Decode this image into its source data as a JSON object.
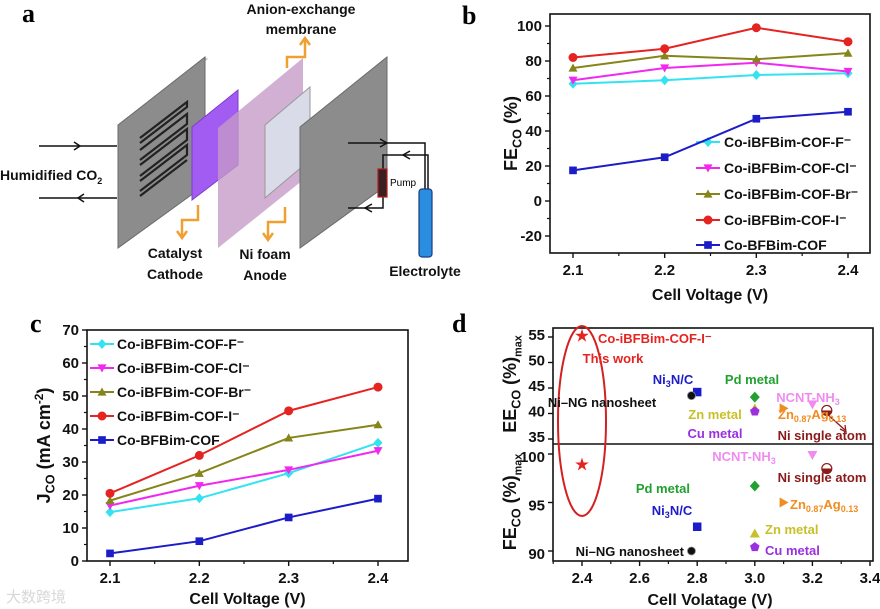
{
  "panel_letters": [
    "a",
    "b",
    "c",
    "d"
  ],
  "watermark": "大数跨境",
  "diagram": {
    "labels": {
      "membrane_1": "Anion-exchange",
      "membrane_2": "membrane",
      "humidified": "Humidified CO",
      "humidified_sub": "2",
      "catalyst_1": "Catalyst",
      "catalyst_2": "Cathode",
      "anode_1": "Ni foam",
      "anode_2": "Anode",
      "pump": "Pump",
      "electrolyte": "Electrolyte"
    }
  },
  "chart_data": [
    {
      "type": "line",
      "panel": "b",
      "xlabel": "Cell Voltage (V)",
      "ylabel": {
        "main": "FE",
        "sub": "CO",
        "rest": " (%)"
      },
      "x": [
        2.1,
        2.2,
        2.3,
        2.4
      ],
      "xticks": [
        "2.1",
        "2.2",
        "2.3",
        "2.4"
      ],
      "ylim": [
        -30,
        105
      ],
      "yticks": [
        "-20",
        "0",
        "20",
        "40",
        "60",
        "80",
        "100"
      ],
      "ytick_values": [
        -20,
        0,
        20,
        40,
        60,
        80,
        100
      ],
      "legend_placement": "bottom-right",
      "series": [
        {
          "name": "Co-iBFBim-COF-F⁻",
          "values": [
            67,
            69,
            72,
            73
          ],
          "color": "#33e3f0",
          "marker": "diamond"
        },
        {
          "name": "Co-iBFBim-COF-Cl⁻",
          "values": [
            69,
            76,
            79,
            74
          ],
          "color": "#f028f0",
          "marker": "triangle-down"
        },
        {
          "name": "Co-iBFBim-COF-Br⁻",
          "values": [
            76,
            83,
            81,
            84.5
          ],
          "color": "#85851a",
          "marker": "triangle-up"
        },
        {
          "name": "Co-iBFBim-COF-I⁻",
          "values": [
            82,
            87,
            99,
            91
          ],
          "color": "#e52320",
          "marker": "circle"
        },
        {
          "name": "Co-BFBim-COF",
          "values": [
            17.5,
            25,
            47,
            51
          ],
          "color": "#1c1cc8",
          "marker": "square"
        }
      ]
    },
    {
      "type": "line",
      "panel": "c",
      "xlabel": "Cell Voltage (V)",
      "ylabel": {
        "main": "J",
        "sub": "CO",
        "rest": " (mA cm",
        "sup": "-2",
        "end": ")"
      },
      "x": [
        2.1,
        2.2,
        2.3,
        2.4
      ],
      "xticks": [
        "2.1",
        "2.2",
        "2.3",
        "2.4"
      ],
      "ylim": [
        0,
        70
      ],
      "yticks": [
        "0",
        "10",
        "20",
        "30",
        "40",
        "50",
        "60",
        "70"
      ],
      "ytick_values": [
        0,
        10,
        20,
        30,
        40,
        50,
        60,
        70
      ],
      "legend_placement": "top-left",
      "series": [
        {
          "name": "Co-iBFBim-COF-F⁻",
          "values": [
            14.8,
            19,
            26.6,
            35.8
          ],
          "color": "#33e3f0",
          "marker": "diamond"
        },
        {
          "name": "Co-iBFBim-COF-Cl⁻",
          "values": [
            16.8,
            22.8,
            27.6,
            33.4
          ],
          "color": "#f028f0",
          "marker": "triangle-down"
        },
        {
          "name": "Co-iBFBim-COF-Br⁻",
          "values": [
            18.3,
            26.6,
            37.3,
            41.3
          ],
          "color": "#85851a",
          "marker": "triangle-up"
        },
        {
          "name": "Co-iBFBim-COF-I⁻",
          "values": [
            20.5,
            32,
            45.5,
            52.7
          ],
          "color": "#e52320",
          "marker": "circle"
        },
        {
          "name": "Co-BFBim-COF",
          "values": [
            2.3,
            6,
            13.2,
            18.9
          ],
          "color": "#1c1cc8",
          "marker": "square"
        }
      ]
    },
    {
      "type": "scatter",
      "panel": "d",
      "xlabel": "Cell Volatage (V)",
      "xlim": [
        2.3,
        3.4
      ],
      "xticks": [
        "2.4",
        "2.6",
        "2.8",
        "3.0",
        "3.2",
        "3.4"
      ],
      "xtick_values": [
        2.4,
        2.6,
        2.8,
        3.0,
        3.2,
        3.4
      ],
      "top": {
        "ylabel": {
          "main": "EE",
          "sub": "CO",
          "rest": " (%)",
          "sub2": "max"
        },
        "ylim": [
          33.5,
          57
        ],
        "yticks": [
          "35",
          "40",
          "45",
          "50",
          "55"
        ],
        "ytick_values": [
          35,
          40,
          45,
          50,
          55
        ],
        "points": [
          {
            "x": 2.4,
            "y": 55.2,
            "marker": "star",
            "color": "#e52320"
          },
          {
            "x": 2.8,
            "y": 44.2,
            "marker": "square",
            "color": "#1c1cc8"
          },
          {
            "x": 2.78,
            "y": 43.5,
            "marker": "sphere",
            "color": "#111111"
          },
          {
            "x": 3.0,
            "y": 43.2,
            "marker": "diamond",
            "color": "#22a030"
          },
          {
            "x": 3.0,
            "y": 41.0,
            "marker": "triangle-up",
            "color": "#c8c028"
          },
          {
            "x": 3.0,
            "y": 40.4,
            "marker": "pentagon",
            "color": "#9a30e0"
          },
          {
            "x": 3.1,
            "y": 41.0,
            "marker": "triangle-right",
            "color": "#f08c20"
          },
          {
            "x": 3.2,
            "y": 41.8,
            "marker": "triangle-down",
            "color": "#f08cf0"
          },
          {
            "x": 3.25,
            "y": 40.6,
            "marker": "half-circle",
            "color": "#8b1a1a"
          }
        ],
        "labels": [
          {
            "t": [
              [
                "Co-iBFBim-COF-I⁻",
                ""
              ]
            ],
            "color": "#e52320"
          },
          {
            "t": [
              [
                "This work",
                ""
              ]
            ],
            "color": "#e52320"
          },
          {
            "t": [
              [
                "Ni",
                ""
              ],
              [
                "3",
                "sub"
              ],
              [
                "N/C",
                ""
              ]
            ],
            "color": "#1c1cc8"
          },
          {
            "t": [
              [
                "Ni–NG nanosheet",
                ""
              ]
            ],
            "color": "#111111"
          },
          {
            "t": [
              [
                "Pd metal",
                ""
              ]
            ],
            "color": "#22a030"
          },
          {
            "t": [
              [
                "Zn metal",
                ""
              ]
            ],
            "color": "#c8c028"
          },
          {
            "t": [
              [
                "Cu metal",
                ""
              ]
            ],
            "color": "#9a30e0"
          },
          {
            "t": [
              [
                "Zn",
                ""
              ],
              [
                "0.87",
                "sub"
              ],
              [
                "Ag",
                ""
              ],
              [
                "0.13",
                "sub"
              ]
            ],
            "color": "#f08c20"
          },
          {
            "t": [
              [
                "NCNT-NH",
                ""
              ],
              [
                "3",
                "sub"
              ]
            ],
            "color": "#f08cf0"
          },
          {
            "t": [
              [
                "Ni single atom",
                ""
              ]
            ],
            "color": "#8b1a1a"
          }
        ]
      },
      "bottom": {
        "ylabel": {
          "main": "FE",
          "sub": "CO",
          "rest": " (%)",
          "sub2": "max"
        },
        "ylim": [
          89.3,
          100.5
        ],
        "yticks": [
          "90",
          "95",
          "100"
        ],
        "ytick_values": [
          90,
          95,
          100
        ],
        "points": [
          {
            "x": 2.4,
            "y": 98.9,
            "marker": "star",
            "color": "#e52320"
          },
          {
            "x": 3.2,
            "y": 99.9,
            "marker": "triangle-down",
            "color": "#f08cf0"
          },
          {
            "x": 3.25,
            "y": 98.5,
            "marker": "half-circle",
            "color": "#8b1a1a"
          },
          {
            "x": 3.0,
            "y": 96.7,
            "marker": "diamond",
            "color": "#22a030"
          },
          {
            "x": 3.1,
            "y": 95.0,
            "marker": "triangle-right",
            "color": "#f08c20"
          },
          {
            "x": 2.8,
            "y": 92.5,
            "marker": "square",
            "color": "#1c1cc8"
          },
          {
            "x": 3.0,
            "y": 91.8,
            "marker": "triangle-up",
            "color": "#c8c028"
          },
          {
            "x": 3.0,
            "y": 90.4,
            "marker": "pentagon",
            "color": "#9a30e0"
          },
          {
            "x": 2.78,
            "y": 90.0,
            "marker": "sphere",
            "color": "#111111"
          }
        ],
        "labels": [
          {
            "t": [
              [
                "NCNT-NH",
                ""
              ],
              [
                "3",
                "sub"
              ]
            ],
            "color": "#f08cf0"
          },
          {
            "t": [
              [
                "Ni single atom",
                ""
              ]
            ],
            "color": "#8b1a1a"
          },
          {
            "t": [
              [
                "Pd metal",
                ""
              ]
            ],
            "color": "#22a030"
          },
          {
            "t": [
              [
                "Zn",
                ""
              ],
              [
                "0.87",
                "sub"
              ],
              [
                "Ag",
                ""
              ],
              [
                "0.13",
                "sub"
              ]
            ],
            "color": "#f08c20"
          },
          {
            "t": [
              [
                "Ni",
                ""
              ],
              [
                "3",
                "sub"
              ],
              [
                "N/C",
                ""
              ]
            ],
            "color": "#1c1cc8"
          },
          {
            "t": [
              [
                "Zn metal",
                ""
              ]
            ],
            "color": "#c8c028"
          },
          {
            "t": [
              [
                "Cu metal",
                ""
              ]
            ],
            "color": "#9a30e0"
          },
          {
            "t": [
              [
                "Ni–NG nanosheet",
                ""
              ]
            ],
            "color": "#111111"
          }
        ]
      }
    }
  ]
}
